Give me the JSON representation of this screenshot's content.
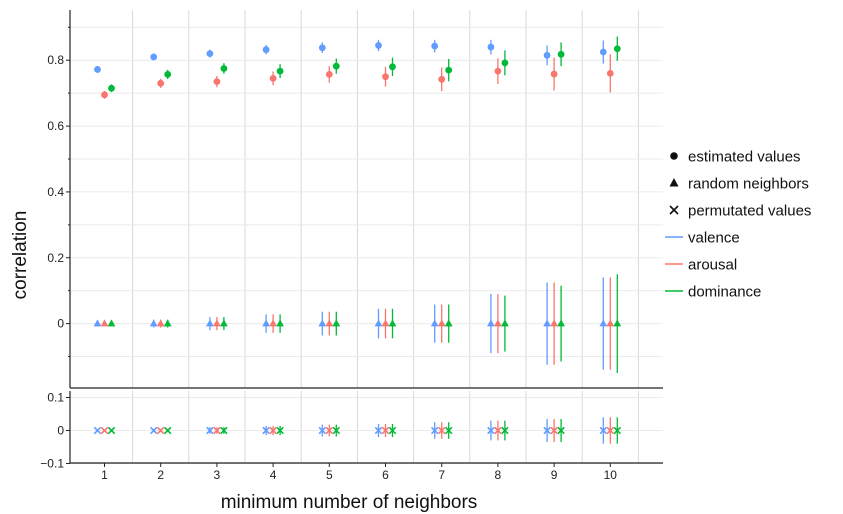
{
  "chart_data": {
    "type": "scatter",
    "xlabel": "minimum number of neighbors",
    "ylabel": "correlation",
    "x": [
      1,
      2,
      3,
      4,
      5,
      6,
      7,
      8,
      9,
      10
    ],
    "x_ticks": [
      "1",
      "2",
      "3",
      "4",
      "5",
      "6",
      "7",
      "8",
      "9",
      "10"
    ],
    "grid": true,
    "legend_position": "right",
    "panels": [
      {
        "name": "top",
        "ylim": [
          -0.2,
          0.95
        ],
        "y_ticks": [
          {
            "value": 0.8,
            "label": "0.8"
          },
          {
            "value": 0.6,
            "label": "0.6"
          },
          {
            "value": 0.4,
            "label": "0.4"
          },
          {
            "value": 0.2,
            "label": "0.2"
          },
          {
            "value": 0,
            "label": "0"
          }
        ]
      },
      {
        "name": "bottom",
        "ylim": [
          -0.1,
          0.1
        ],
        "y_ticks": [
          {
            "value": 0.1,
            "label": "0.1"
          },
          {
            "value": 0,
            "label": "0"
          },
          {
            "value": -0.1,
            "label": "−0.1"
          }
        ]
      }
    ],
    "series": [
      {
        "name": "valence",
        "color": "#619cff",
        "offset": -0.25
      },
      {
        "name": "arousal",
        "color": "#f8766d",
        "offset": 0
      },
      {
        "name": "dominance",
        "color": "#00ba38",
        "offset": 0.25
      }
    ],
    "markers": [
      {
        "name": "estimated values",
        "shape": "circle"
      },
      {
        "name": "random neighbors",
        "shape": "triangle"
      },
      {
        "name": "permutated values",
        "shape": "cross"
      }
    ],
    "estimated": {
      "valence": {
        "y": [
          0.772,
          0.81,
          0.82,
          0.832,
          0.838,
          0.845,
          0.843,
          0.84,
          0.815,
          0.825
        ],
        "lo": [
          0.762,
          0.8,
          0.808,
          0.818,
          0.822,
          0.828,
          0.824,
          0.818,
          0.785,
          0.79
        ],
        "hi": [
          0.782,
          0.82,
          0.832,
          0.846,
          0.854,
          0.862,
          0.862,
          0.862,
          0.845,
          0.86
        ]
      },
      "arousal": {
        "y": [
          0.695,
          0.73,
          0.735,
          0.745,
          0.757,
          0.75,
          0.742,
          0.767,
          0.758,
          0.76
        ],
        "lo": [
          0.683,
          0.716,
          0.718,
          0.724,
          0.732,
          0.72,
          0.706,
          0.728,
          0.708,
          0.702
        ],
        "hi": [
          0.707,
          0.744,
          0.752,
          0.766,
          0.782,
          0.78,
          0.778,
          0.806,
          0.808,
          0.818
        ]
      },
      "dominance": {
        "y": [
          0.715,
          0.757,
          0.775,
          0.767,
          0.782,
          0.78,
          0.77,
          0.792,
          0.818,
          0.835
        ],
        "lo": [
          0.703,
          0.743,
          0.759,
          0.746,
          0.759,
          0.752,
          0.736,
          0.754,
          0.782,
          0.798
        ],
        "hi": [
          0.727,
          0.771,
          0.791,
          0.788,
          0.805,
          0.808,
          0.804,
          0.83,
          0.854,
          0.872
        ]
      }
    },
    "random_neighbors": {
      "valence": {
        "y": [
          0,
          0,
          0,
          0,
          0,
          0,
          0,
          0,
          0,
          0
        ],
        "err": [
          0.008,
          0.012,
          0.02,
          0.028,
          0.036,
          0.045,
          0.058,
          0.09,
          0.125,
          0.14
        ]
      },
      "arousal": {
        "y": [
          0,
          0,
          0,
          0,
          0,
          0,
          0,
          0,
          0,
          0
        ],
        "err": [
          0.008,
          0.012,
          0.02,
          0.028,
          0.036,
          0.045,
          0.058,
          0.09,
          0.125,
          0.14
        ]
      },
      "dominance": {
        "y": [
          0,
          0,
          0,
          0,
          0,
          0,
          0,
          0,
          0,
          0
        ],
        "err": [
          0.008,
          0.012,
          0.02,
          0.028,
          0.036,
          0.045,
          0.058,
          0.085,
          0.115,
          0.15
        ]
      }
    },
    "permutated_values": {
      "valence": {
        "y": [
          0,
          0,
          0,
          0,
          0,
          0,
          0,
          0,
          0,
          0
        ],
        "err": [
          0.003,
          0.005,
          0.01,
          0.014,
          0.018,
          0.02,
          0.025,
          0.03,
          0.035,
          0.04
        ]
      },
      "arousal": {
        "y": [
          0,
          0,
          0,
          0,
          0,
          0,
          0,
          0,
          0,
          0
        ],
        "err": [
          0.003,
          0.005,
          0.01,
          0.014,
          0.018,
          0.02,
          0.025,
          0.03,
          0.035,
          0.04
        ]
      },
      "dominance": {
        "y": [
          0,
          0,
          0,
          0,
          0,
          0,
          0,
          0,
          0,
          0
        ],
        "err": [
          0.003,
          0.005,
          0.01,
          0.014,
          0.018,
          0.02,
          0.025,
          0.03,
          0.035,
          0.04
        ]
      }
    }
  }
}
